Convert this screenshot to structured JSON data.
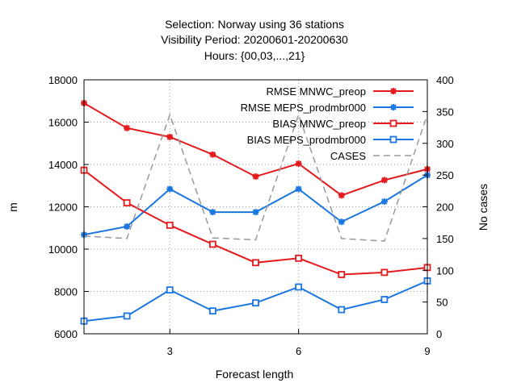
{
  "chart_data": {
    "type": "line",
    "title_lines": [
      "Selection: Norway using    36 stations",
      "Visibility   Period: 20200601-20200630",
      "Hours: {00,03,...,21}"
    ],
    "xlabel": "Forecast length",
    "ylabel": "m",
    "y2label": "No cases",
    "xlim": [
      1,
      9
    ],
    "ylim": [
      6000,
      18000
    ],
    "y2lim": [
      0,
      400
    ],
    "xticks": [
      3,
      6,
      9
    ],
    "yticks": [
      6000,
      8000,
      10000,
      12000,
      14000,
      16000,
      18000
    ],
    "y2ticks": [
      0,
      50,
      100,
      150,
      200,
      250,
      300,
      350,
      400
    ],
    "grid": true,
    "legend_position": "top-right",
    "x": [
      1,
      2,
      3,
      4,
      5,
      6,
      7,
      8,
      9
    ],
    "series": [
      {
        "name": "RMSE MNWC_preop",
        "axis": "y1",
        "marker": "star",
        "dash": "solid",
        "color": "#e41a1c",
        "values": [
          16900,
          15720,
          15300,
          14470,
          13430,
          14040,
          12540,
          13260,
          13780
        ]
      },
      {
        "name": "RMSE MEPS_prodmbr000",
        "axis": "y1",
        "marker": "star",
        "dash": "solid",
        "color": "#1a76e0",
        "values": [
          10680,
          11070,
          12840,
          11750,
          11750,
          12840,
          11290,
          12250,
          13500
        ]
      },
      {
        "name": "BIAS MNWC_preop",
        "axis": "y1",
        "marker": "square",
        "dash": "solid",
        "color": "#e41a1c",
        "values": [
          13730,
          12190,
          11130,
          10230,
          9360,
          9570,
          8800,
          8900,
          9130
        ]
      },
      {
        "name": "BIAS MEPS_prodmbr000",
        "axis": "y1",
        "marker": "square",
        "dash": "solid",
        "color": "#1a76e0",
        "values": [
          6600,
          6840,
          8070,
          7080,
          7460,
          8210,
          7140,
          7620,
          8500
        ]
      },
      {
        "name": "CASES",
        "axis": "y2",
        "marker": "none",
        "dash": "dashed",
        "color": "#999999",
        "values": [
          154,
          150,
          345,
          151,
          148,
          345,
          150,
          146,
          345
        ]
      }
    ]
  }
}
